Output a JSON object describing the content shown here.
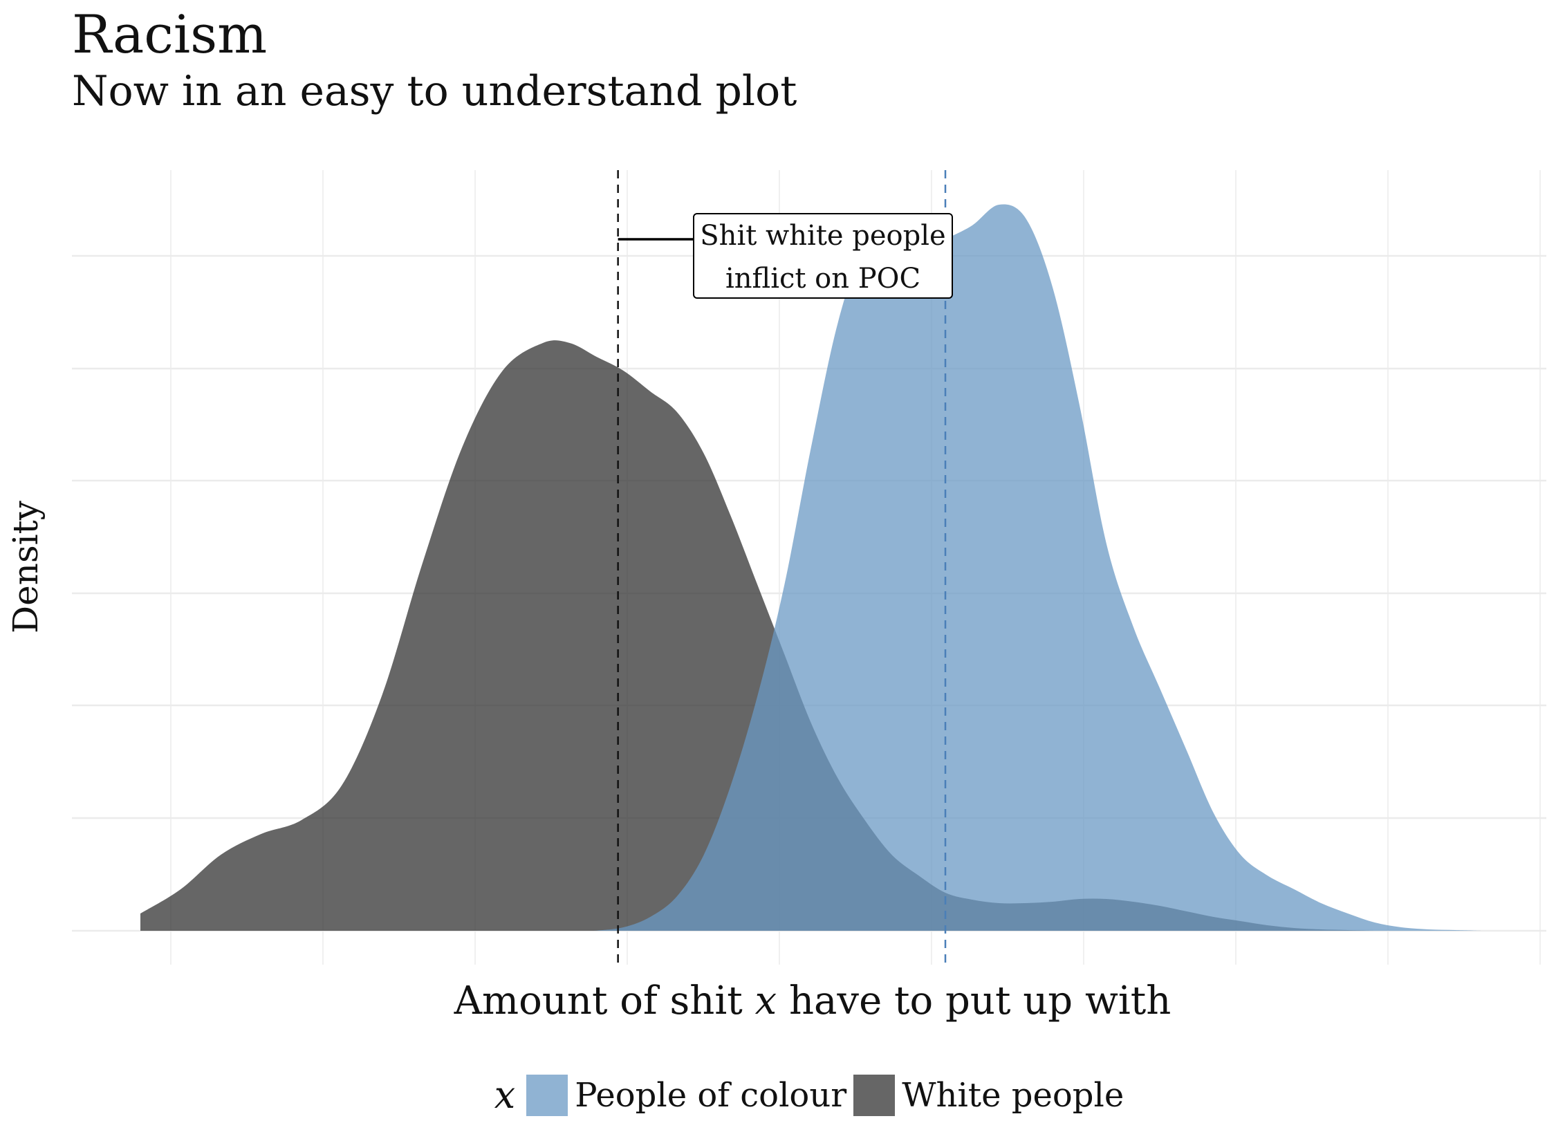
{
  "title": "Racism",
  "subtitle": "Now in an easy to understand plot",
  "chart_data": {
    "type": "area",
    "title": "Racism",
    "subtitle": "Now in an easy to understand plot",
    "xlabel_parts": [
      "Amount of shit ",
      "x",
      " have to put up with"
    ],
    "ylabel": "Density",
    "xlim": [
      0,
      1
    ],
    "ylim": [
      0,
      1.1
    ],
    "grid": true,
    "legend_placement": "bottom",
    "legend_title": "x",
    "series": [
      {
        "name": "People of colour",
        "color": "#6b9ac4",
        "opacity": 0.75,
        "mean_line": 0.6,
        "mean_line_color": "#4a7fb8",
        "x": [
          0.338,
          0.36,
          0.38,
          0.4,
          0.42,
          0.44,
          0.46,
          0.48,
          0.5,
          0.52,
          0.54,
          0.56,
          0.58,
          0.6,
          0.62,
          0.64,
          0.66,
          0.68,
          0.7,
          0.72,
          0.74,
          0.76,
          0.78,
          0.8,
          0.82,
          0.84,
          0.86,
          0.88,
          0.9,
          0.92,
          0.94,
          0.96,
          0.98,
          1.0
        ],
        "y": [
          0.0,
          0.005,
          0.02,
          0.05,
          0.11,
          0.21,
          0.34,
          0.5,
          0.7,
          0.88,
          0.99,
          0.995,
          0.98,
          1.0,
          1.02,
          1.05,
          1.03,
          0.93,
          0.76,
          0.56,
          0.44,
          0.35,
          0.26,
          0.17,
          0.11,
          0.08,
          0.06,
          0.04,
          0.025,
          0.012,
          0.005,
          0.002,
          0.001,
          0.0
        ]
      },
      {
        "name": "White people",
        "color": "#333333",
        "opacity": 0.75,
        "mean_line": 0.356,
        "mean_line_color": "#111111",
        "x": [
          0.0,
          0.03,
          0.06,
          0.09,
          0.12,
          0.15,
          0.18,
          0.21,
          0.24,
          0.27,
          0.3,
          0.32,
          0.34,
          0.36,
          0.38,
          0.4,
          0.42,
          0.44,
          0.46,
          0.48,
          0.5,
          0.52,
          0.54,
          0.56,
          0.58,
          0.6,
          0.62,
          0.64,
          0.66,
          0.68,
          0.7,
          0.72,
          0.74,
          0.76,
          0.78,
          0.8,
          0.82,
          0.84,
          0.86,
          0.88,
          0.9,
          0.92
        ],
        "y": [
          0.025,
          0.06,
          0.11,
          0.14,
          0.16,
          0.21,
          0.34,
          0.53,
          0.7,
          0.81,
          0.85,
          0.85,
          0.83,
          0.81,
          0.78,
          0.75,
          0.69,
          0.6,
          0.5,
          0.4,
          0.3,
          0.22,
          0.16,
          0.11,
          0.08,
          0.055,
          0.045,
          0.04,
          0.04,
          0.042,
          0.046,
          0.046,
          0.042,
          0.036,
          0.028,
          0.02,
          0.014,
          0.008,
          0.004,
          0.002,
          0.001,
          0.0
        ]
      }
    ],
    "annotation": {
      "lines": [
        "Shit white people",
        "inflict on POC"
      ],
      "arrow_from": 0.356,
      "arrow_to": 0.6,
      "arrow_y": 1.0
    }
  }
}
